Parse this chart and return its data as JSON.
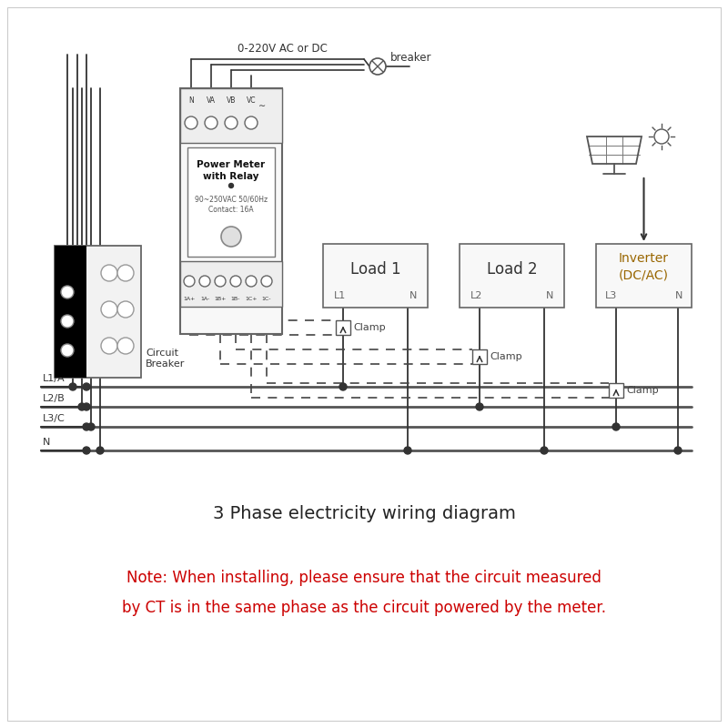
{
  "title": "3 Phase electricity wiring diagram",
  "note_line1": "Note: When installing, please ensure that the circuit measured",
  "note_line2": "by CT is in the same phase as the circuit powered by the meter.",
  "note_color": "#cc0000",
  "title_color": "#222222",
  "bg_color": "#ffffff",
  "line_color": "#333333",
  "dashed_color": "#444444",
  "breaker_label": "0-220V AC or DC",
  "breaker_text": "breaker",
  "circuit_breaker_label": "Circuit\nBreaker",
  "power_meter_line1": "Power Meter",
  "power_meter_line2": "with Relay",
  "power_meter_line3": "90~250VAC 50/60Hz",
  "power_meter_line4": "Contact: 16A",
  "load1_label": "Load 1",
  "load2_label": "Load 2",
  "inverter_label": "Inverter\n(DC/AC)",
  "inverter_color": "#996600",
  "clamp_label": "Clamp",
  "L1_label": "L1",
  "N1_label": "N",
  "L2_label": "L2",
  "N2_label": "N",
  "L3_label": "L3",
  "N3_label": "N",
  "LA_label": "L1/A",
  "LB_label": "L2/B",
  "LC_label": "L3/C",
  "LN_label": "N",
  "top_terminals": [
    "N",
    "VA",
    "VB",
    "VC"
  ],
  "bottom_terminals": [
    "1A+",
    "1A-",
    "1B+",
    "1B-",
    "1C+",
    "1C-"
  ]
}
